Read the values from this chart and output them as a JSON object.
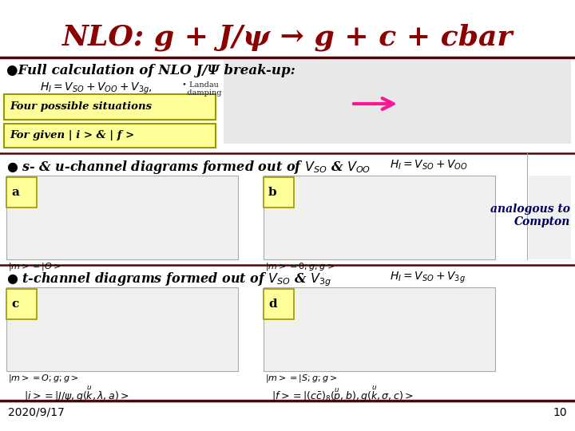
{
  "title": "NLO: g + J/ψ → g + c + cbar",
  "title_color": "#8B0000",
  "title_fontsize": 26,
  "bg_color": "#FFFFFF",
  "footer_line_color": "#5C0000",
  "header_line_color": "#5C0000",
  "footer_date": "2020/9/17",
  "footer_page": "10",
  "footer_fontsize": 10,
  "label1": "●Full calculation of NLO J/Ψ break-up:",
  "label1_fontsize": 12,
  "formula1": "$H_I = V_{SO} + V_{OO} + V_{3g},$",
  "formula_note": "• Landau\n  damping",
  "box1": "Four possible situations",
  "box2": "For given | i > & | f >",
  "box_color": "#FFFF99",
  "box_border_color": "#999900",
  "label2": "● s- & u-channel diagrams formed out of $V_{SO}$ & $V_{OO}$",
  "label2_fontsize": 11.5,
  "label3": "● t-channel diagrams formed out of $V_{SO}$ & $V_{3g}$",
  "label3_fontsize": 11.5,
  "label_a": "a",
  "label_b": "b",
  "label_c": "c",
  "label_d": "d",
  "analog_text": "analogous to\nCompton",
  "formula2": "$H_I = V_{SO}+V_{OO}$",
  "formula3": "$H_I = V_{SO}+V_{3g}$",
  "bra_ket1": "$|i>=|J/\\psi,g(\\overset{u}{k},\\lambda,a)>$",
  "bra_ket2": "$|f>=|(c\\bar{c})_8(\\overset{u}{p},b),g(\\overset{u}{k},\\sigma,c)>$",
  "m_label_a": "$|m>=|O>$",
  "m_label_b": "$|m>=0;g;g>$",
  "m_label_c": "$|m>=O;g;g>$",
  "m_label_d": "$|m>=|S;g;g>$",
  "diagram_bg": "#F0F0EE",
  "diagram_border": "#AAAAAA",
  "top_diagram_bg": "#E8E8E8"
}
